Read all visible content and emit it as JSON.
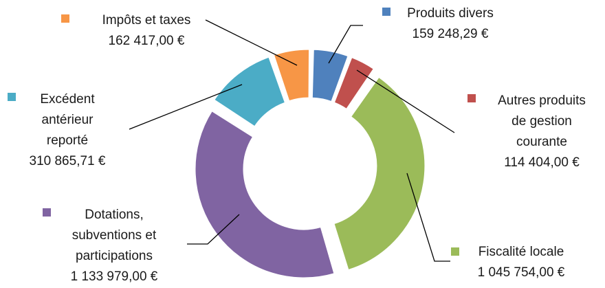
{
  "chart_data": {
    "type": "pie",
    "subtype": "donut",
    "title": "",
    "unit": "€",
    "legend": "none",
    "slices": [
      {
        "label": "Produits divers",
        "value": 159248.29,
        "value_text": "159 248,29 €",
        "color": "#4f81bd"
      },
      {
        "label": "Autres produits de gestion courante",
        "value": 114404.0,
        "value_text": "114 404,00 €",
        "color": "#c0504d"
      },
      {
        "label": "Fiscalité locale",
        "value": 1045754.0,
        "value_text": "1 045 754,00 €",
        "color": "#9bbb59"
      },
      {
        "label": "Dotations, subventions et participations",
        "value": 1133979.0,
        "value_text": "1 133 979,00 €",
        "color": "#8064a2"
      },
      {
        "label": "Excédent antérieur reporté",
        "value": 310865.71,
        "value_text": "310 865,71 €",
        "color": "#4bacc6"
      },
      {
        "label": "Impôts et taxes",
        "value": 162417.0,
        "value_text": "162 417,00 €",
        "color": "#f79646"
      }
    ]
  }
}
